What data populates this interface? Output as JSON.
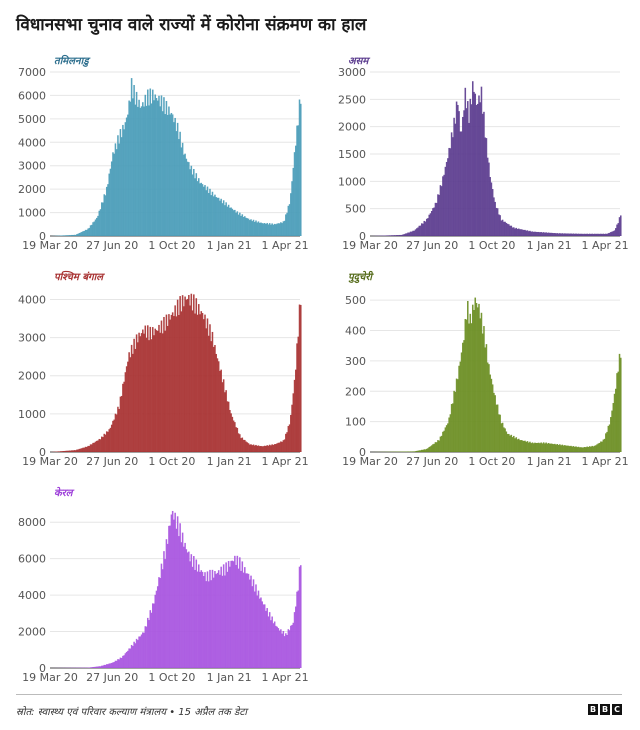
{
  "title": "विधानसभा चुनाव वाले राज्यों में कोरोना संक्रमण का हाल",
  "source": "स्रोत: स्वास्थ्य एवं परिवार कल्याण मंत्रालय • 15 अप्रैल तक डेटा",
  "brand": {
    "letters": [
      "B",
      "B",
      "C"
    ]
  },
  "colors": {
    "grid": "#e6e6e6",
    "axis": "#444444"
  },
  "chart_data": [
    {
      "type": "bar",
      "state": "तमिलनाडु",
      "color": "#4a9cb8",
      "label_color": "#2e6f8e",
      "x": [
        "19 Mar 20",
        "27 Jun 20",
        "1 Oct 20",
        "1 Jan 21",
        "1 Apr 21"
      ],
      "yticks": [
        0,
        1000,
        2000,
        3000,
        4000,
        5000,
        6000,
        7000
      ],
      "ylim": [
        0,
        7000
      ],
      "series_points": [
        [
          0,
          0
        ],
        [
          40,
          50
        ],
        [
          60,
          300
        ],
        [
          75,
          800
        ],
        [
          90,
          2000
        ],
        [
          100,
          3500
        ],
        [
          110,
          4200
        ],
        [
          120,
          4800
        ],
        [
          125,
          5400
        ],
        [
          130,
          6400
        ],
        [
          135,
          6000
        ],
        [
          145,
          5500
        ],
        [
          155,
          5900
        ],
        [
          165,
          6000
        ],
        [
          175,
          5800
        ],
        [
          185,
          5500
        ],
        [
          195,
          5200
        ],
        [
          205,
          4500
        ],
        [
          215,
          3500
        ],
        [
          225,
          2900
        ],
        [
          240,
          2300
        ],
        [
          260,
          1800
        ],
        [
          280,
          1400
        ],
        [
          300,
          1000
        ],
        [
          320,
          700
        ],
        [
          340,
          550
        ],
        [
          360,
          500
        ],
        [
          375,
          600
        ],
        [
          385,
          1500
        ],
        [
          392,
          3500
        ],
        [
          398,
          5000
        ],
        [
          402,
          6000
        ]
      ]
    },
    {
      "type": "bar",
      "state": "असम",
      "color": "#5c3d8f",
      "label_color": "#5c3d8f",
      "x": [
        "19 Mar 20",
        "27 Jun 20",
        "1 Oct 20",
        "1 Jan 21",
        "1 Apr 21"
      ],
      "yticks": [
        0,
        500,
        1000,
        1500,
        2000,
        2500,
        3000
      ],
      "ylim": [
        0,
        3000
      ],
      "series_points": [
        [
          0,
          0
        ],
        [
          50,
          20
        ],
        [
          70,
          100
        ],
        [
          90,
          300
        ],
        [
          105,
          600
        ],
        [
          115,
          1000
        ],
        [
          125,
          1500
        ],
        [
          135,
          2100
        ],
        [
          140,
          2500
        ],
        [
          145,
          1800
        ],
        [
          152,
          2600
        ],
        [
          158,
          2200
        ],
        [
          165,
          2800
        ],
        [
          170,
          2400
        ],
        [
          178,
          2600
        ],
        [
          185,
          1800
        ],
        [
          192,
          1100
        ],
        [
          200,
          600
        ],
        [
          210,
          300
        ],
        [
          230,
          150
        ],
        [
          260,
          80
        ],
        [
          300,
          50
        ],
        [
          340,
          40
        ],
        [
          380,
          40
        ],
        [
          392,
          100
        ],
        [
          398,
          250
        ],
        [
          402,
          400
        ]
      ]
    },
    {
      "type": "bar",
      "state": "पश्चिम बंगाल",
      "color": "#a83232",
      "label_color": "#a83232",
      "x": [
        "19 Mar 20",
        "27 Jun 20",
        "1 Oct 20",
        "1 Jan 21",
        "1 Apr 21"
      ],
      "yticks": [
        0,
        1000,
        2000,
        3000,
        4000
      ],
      "ylim": [
        0,
        4300
      ],
      "series_points": [
        [
          0,
          0
        ],
        [
          40,
          50
        ],
        [
          60,
          150
        ],
        [
          80,
          350
        ],
        [
          95,
          600
        ],
        [
          110,
          1200
        ],
        [
          125,
          2500
        ],
        [
          140,
          3000
        ],
        [
          150,
          3200
        ],
        [
          160,
          3100
        ],
        [
          170,
          3200
        ],
        [
          180,
          3300
        ],
        [
          190,
          3500
        ],
        [
          200,
          3700
        ],
        [
          210,
          3900
        ],
        [
          220,
          4050
        ],
        [
          230,
          3900
        ],
        [
          245,
          3600
        ],
        [
          260,
          3000
        ],
        [
          275,
          2000
        ],
        [
          290,
          1000
        ],
        [
          305,
          400
        ],
        [
          320,
          200
        ],
        [
          340,
          150
        ],
        [
          360,
          200
        ],
        [
          375,
          300
        ],
        [
          385,
          800
        ],
        [
          393,
          2000
        ],
        [
          398,
          3200
        ],
        [
          402,
          4100
        ]
      ]
    },
    {
      "type": "bar",
      "state": "पुदुचेरी",
      "color": "#6b8e23",
      "label_color": "#556b1a",
      "x": [
        "19 Mar 20",
        "27 Jun 20",
        "1 Oct 20",
        "1 Jan 21",
        "1 Apr 21"
      ],
      "yticks": [
        0,
        100,
        200,
        300,
        400,
        500
      ],
      "ylim": [
        0,
        540
      ],
      "series_points": [
        [
          0,
          0
        ],
        [
          70,
          2
        ],
        [
          90,
          10
        ],
        [
          110,
          40
        ],
        [
          125,
          100
        ],
        [
          140,
          250
        ],
        [
          150,
          380
        ],
        [
          155,
          480
        ],
        [
          160,
          430
        ],
        [
          168,
          500
        ],
        [
          175,
          470
        ],
        [
          183,
          380
        ],
        [
          190,
          280
        ],
        [
          200,
          180
        ],
        [
          210,
          100
        ],
        [
          220,
          60
        ],
        [
          240,
          40
        ],
        [
          260,
          30
        ],
        [
          280,
          30
        ],
        [
          300,
          25
        ],
        [
          320,
          20
        ],
        [
          340,
          15
        ],
        [
          360,
          20
        ],
        [
          375,
          40
        ],
        [
          385,
          100
        ],
        [
          393,
          200
        ],
        [
          398,
          280
        ],
        [
          402,
          330
        ]
      ]
    },
    {
      "type": "bar",
      "state": "केरल",
      "color": "#a855e0",
      "label_color": "#9d3fd9",
      "x": [
        "19 Mar 20",
        "27 Jun 20",
        "1 Oct 20",
        "1 Jan 21",
        "1 Apr 21"
      ],
      "yticks": [
        0,
        2000,
        4000,
        6000,
        8000
      ],
      "ylim": [
        0,
        9000
      ],
      "series_points": [
        [
          0,
          0
        ],
        [
          60,
          20
        ],
        [
          80,
          100
        ],
        [
          100,
          300
        ],
        [
          115,
          600
        ],
        [
          130,
          1200
        ],
        [
          150,
          2000
        ],
        [
          165,
          3500
        ],
        [
          175,
          5000
        ],
        [
          185,
          6500
        ],
        [
          195,
          8600
        ],
        [
          205,
          7800
        ],
        [
          215,
          6800
        ],
        [
          225,
          6000
        ],
        [
          235,
          5600
        ],
        [
          250,
          5000
        ],
        [
          265,
          5200
        ],
        [
          280,
          5400
        ],
        [
          295,
          6000
        ],
        [
          305,
          5700
        ],
        [
          320,
          5000
        ],
        [
          335,
          4000
        ],
        [
          350,
          3000
        ],
        [
          365,
          2200
        ],
        [
          378,
          1800
        ],
        [
          390,
          2500
        ],
        [
          398,
          4500
        ],
        [
          402,
          6000
        ]
      ]
    }
  ]
}
